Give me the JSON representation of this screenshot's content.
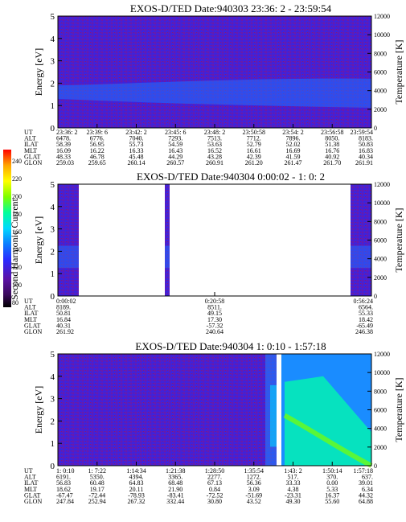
{
  "colorbar": {
    "label": "Second Harmonic Current",
    "ticks": [
      "240",
      "220",
      "200",
      "180",
      "160",
      "140",
      "120",
      "100",
      "80"
    ],
    "colors": [
      "#000000",
      "#3a0a5c",
      "#5b12a6",
      "#2a2aff",
      "#0a7cff",
      "#00d8ff",
      "#00ff9a",
      "#7dff00",
      "#ffff00",
      "#ffa500",
      "#ff2a00",
      "#ff0000"
    ]
  },
  "chart_data": [
    {
      "type": "heatmap",
      "title": "EXOS-D/TED   Date:940303  23:36: 2 - 23:59:54",
      "ylabel": "Energy [eV]",
      "ylabel_right": "Temperature [K]",
      "y_ticks": [
        "0",
        "1",
        "2",
        "3",
        "4",
        "5"
      ],
      "y_right_ticks": [
        "0",
        "2000",
        "4000",
        "6000",
        "8000",
        "10000",
        "12000"
      ],
      "ylim": [
        0,
        5
      ],
      "ylim_right": [
        0,
        12000
      ],
      "row_labels": [
        "UT",
        "ALT",
        "ILAT",
        "MLT",
        "GLAT",
        "GLON"
      ],
      "columns": [
        [
          "23:36: 2",
          "6478.",
          "58.39",
          "16.09",
          "48.33",
          "259.03"
        ],
        [
          "23:39: 6",
          "6776.",
          "56.95",
          "16.22",
          "46.78",
          "259.65"
        ],
        [
          "23:42: 2",
          "7040.",
          "55.73",
          "16.33",
          "45.48",
          "260.14"
        ],
        [
          "23:45: 6",
          "7293.",
          "54.59",
          "16.43",
          "44.29",
          "260.57"
        ],
        [
          "23:48: 2",
          "7513.",
          "53.63",
          "16.52",
          "43.28",
          "260.91"
        ],
        [
          "23:50:58",
          "7712.",
          "52.79",
          "16.61",
          "42.39",
          "261.20"
        ],
        [
          "23:54: 2",
          "7896.",
          "52.02",
          "16.69",
          "41.59",
          "261.47"
        ],
        [
          "23:56:58",
          "8050.",
          "51.38",
          "16.76",
          "40.92",
          "261.70"
        ],
        [
          "23:59:54",
          "8183.",
          "50.83",
          "16.83",
          "40.34",
          "261.91"
        ]
      ]
    },
    {
      "type": "heatmap",
      "title": "EXOS-D/TED   Date:940304  0:00:02 - 1: 0: 2",
      "ylabel": "Energy [eV]",
      "ylabel_right": "Temperature [K]",
      "y_ticks": [
        "0",
        "1",
        "2",
        "3",
        "4",
        "5"
      ],
      "y_right_ticks": [
        "0",
        "2000",
        "4000",
        "6000",
        "8000",
        "10000",
        "12000"
      ],
      "ylim": [
        0,
        5
      ],
      "ylim_right": [
        0,
        12000
      ],
      "row_labels": [
        "UT",
        "ALT",
        "ILAT",
        "MLT",
        "GLAT",
        "GLON"
      ],
      "columns": [
        [
          "0:00:02",
          "8189.",
          "50.81",
          "16.84",
          "40.31",
          "261.92"
        ],
        [
          "0:20:58",
          "8511.",
          "49.15",
          "17.30",
          "-57.32",
          "240.64"
        ],
        [
          "0:56:24",
          "6564.",
          "55.33",
          "18.42",
          "-65.49",
          "246.38"
        ]
      ]
    },
    {
      "type": "heatmap",
      "title": "EXOS-D/TED   Date:940304   1: 0:10 - 1:57:18",
      "ylabel": "Energy [eV]",
      "ylabel_right": "Temperature [K]",
      "y_ticks": [
        "0",
        "1",
        "2",
        "3",
        "4",
        "5"
      ],
      "y_right_ticks": [
        "0",
        "2000",
        "4000",
        "6000",
        "8000",
        "10000",
        "12000"
      ],
      "ylim": [
        0,
        5
      ],
      "ylim_right": [
        0,
        12000
      ],
      "row_labels": [
        "UT",
        "ALT",
        "ILAT",
        "MLT",
        "GLAT",
        "GLON"
      ],
      "columns": [
        [
          "1: 0:10",
          "6191.",
          "56.83",
          "18.62",
          "-67.47",
          "247.84"
        ],
        [
          "1: 7:22",
          "5350.",
          "60.48",
          "19.17",
          "-72.44",
          "252.94"
        ],
        [
          "1:14:34",
          "4394.",
          "64.83",
          "20.11",
          "-78.93",
          "267.32"
        ],
        [
          "1:21:38",
          "3365.",
          "68.48",
          "21.90",
          "-83.41",
          "332.44"
        ],
        [
          "1:28:50",
          "2277.",
          "67.13",
          "0.84",
          "-72.52",
          "30.80"
        ],
        [
          "1:35:54",
          "1272.",
          "56.36",
          "3.09",
          "-51.69",
          "43.52"
        ],
        [
          "1:43: 2",
          "517.",
          "33.33",
          "4.38",
          "-23.31",
          "49.30"
        ],
        [
          "1:50:14",
          "370.",
          "0.00",
          "5.33",
          "16.37",
          "55.60"
        ],
        [
          "1:57:18",
          "637.",
          "39.01",
          "6.34",
          "44.32",
          "64.88"
        ]
      ]
    }
  ]
}
